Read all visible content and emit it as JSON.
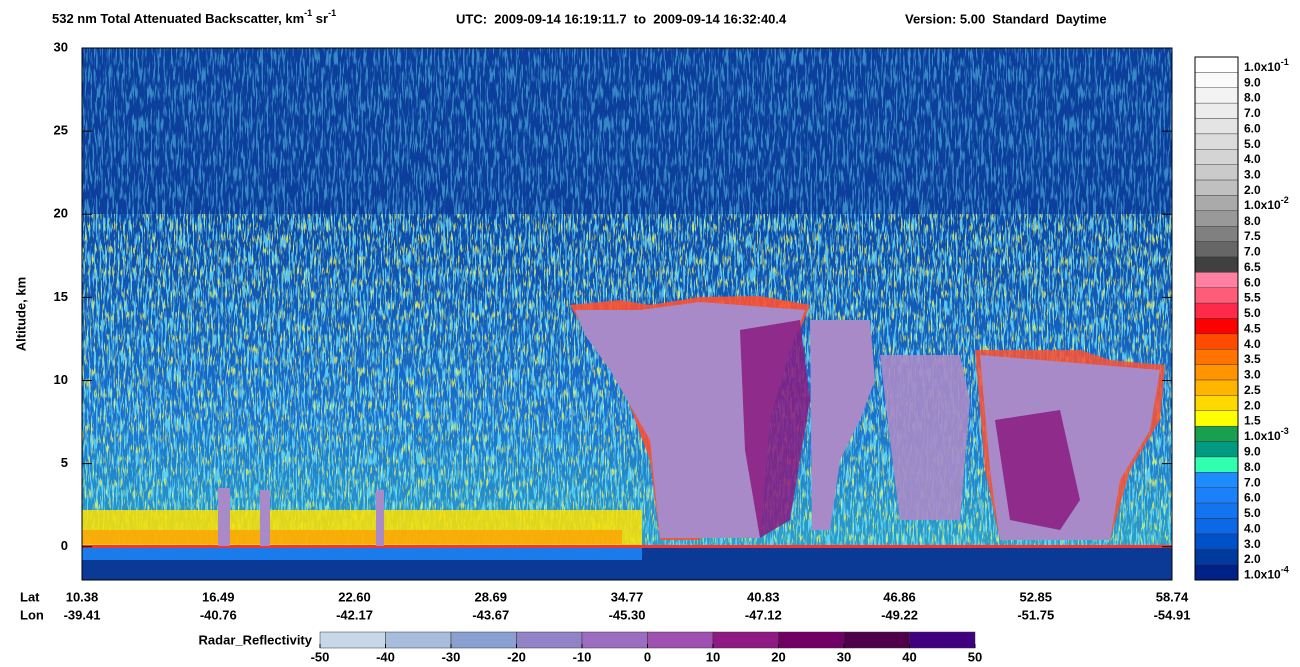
{
  "chart_data": {
    "type": "heatmap",
    "title": {
      "main": "532 nm Total Attenuated Backscatter, km",
      "sup1": "-1",
      "mid": " sr",
      "sup2": "-1",
      "utc": "UTC:  2009-09-14 16:19:11.7  to  2009-09-14 16:32:40.4",
      "version": "Version: 5.00  Standard  Daytime"
    },
    "y_label": "Altitude, km",
    "ylim": [
      -2,
      30
    ],
    "yticks": [
      0,
      5,
      10,
      15,
      20,
      25,
      30
    ],
    "x_row_labels": [
      "Lat",
      "Lon"
    ],
    "lat": [
      "10.38",
      "16.49",
      "22.60",
      "28.69",
      "34.77",
      "40.83",
      "46.86",
      "52.85",
      "58.74"
    ],
    "lon": [
      "-39.41",
      "-40.76",
      "-42.17",
      "-43.67",
      "-45.30",
      "-47.12",
      "-49.22",
      "-51.75",
      "-54.91"
    ],
    "colorbar": {
      "labels": [
        {
          "text": "1.0x10",
          "sup": "-1"
        },
        "9.0",
        "8.0",
        "7.0",
        "6.0",
        "5.0",
        "4.0",
        "3.0",
        "2.0",
        {
          "text": "1.0x10",
          "sup": "-2"
        },
        "8.0",
        "7.5",
        "7.0",
        "6.5",
        "6.0",
        "5.5",
        "5.0",
        "4.5",
        "4.0",
        "3.5",
        "3.0",
        "2.5",
        "2.0",
        "1.5",
        {
          "text": "1.0x10",
          "sup": "-3"
        },
        "9.0",
        "8.0",
        "7.0",
        "6.0",
        "5.0",
        "4.0",
        "3.0",
        "2.0",
        {
          "text": "1.0x10",
          "sup": "-4"
        }
      ],
      "colors": [
        "#ffffff",
        "#fafafa",
        "#f3f3f3",
        "#ececec",
        "#e4e4e4",
        "#dcdcdc",
        "#d4d4d4",
        "#cacaca",
        "#c0c0c0",
        "#aaaaaa",
        "#999999",
        "#808080",
        "#666666",
        "#404040",
        "#ff80a0",
        "#ff5c7a",
        "#ff2a4a",
        "#ff0000",
        "#ff4a00",
        "#ff7400",
        "#ff9400",
        "#ffb400",
        "#ffd800",
        "#ffff00",
        "#18a050",
        "#009a80",
        "#30ffb0",
        "#1e8cff",
        "#1c80f8",
        "#1474f0",
        "#0c68e6",
        "#0050c8",
        "#003a9e",
        "#002288"
      ]
    },
    "radar_colorbar": {
      "label": "Radar_Reflectivity",
      "ticks": [
        -50,
        -40,
        -30,
        -20,
        -10,
        0,
        10,
        20,
        30,
        40,
        50
      ],
      "colors": [
        "#c8d8e8",
        "#a8bcdc",
        "#8aa0d0",
        "#9282c8",
        "#9c6cc0",
        "#a050b0",
        "#901a84",
        "#700064",
        "#50004a",
        "#400080"
      ]
    }
  }
}
